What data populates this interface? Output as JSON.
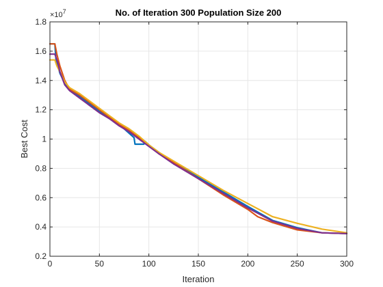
{
  "chart_data": {
    "type": "line",
    "title": "No. of Iteration 300 Population Size 200",
    "xlabel": "Iteration",
    "ylabel": "Best Cost",
    "y_exponent_label": "×10",
    "y_exponent_power": "7",
    "xlim": [
      0,
      300
    ],
    "ylim": [
      0.2,
      1.8
    ],
    "x_ticks": [
      0,
      50,
      100,
      150,
      200,
      250,
      300
    ],
    "x_tick_labels": [
      "0",
      "50",
      "100",
      "150",
      "200",
      "250",
      "300"
    ],
    "y_ticks": [
      0.2,
      0.4,
      0.6,
      0.8,
      1.0,
      1.2,
      1.4,
      1.6,
      1.8
    ],
    "y_tick_labels": [
      "0.2",
      "0.4",
      "0.6",
      "0.8",
      "1",
      "1.2",
      "1.4",
      "1.6",
      "1.8"
    ],
    "grid": true,
    "series": [
      {
        "color": "#0072BD",
        "x": [
          0,
          5,
          6,
          10,
          15,
          20,
          30,
          40,
          50,
          60,
          70,
          80,
          85,
          86,
          95,
          96,
          100,
          110,
          125,
          150,
          175,
          200,
          225,
          250,
          275,
          300
        ],
        "y": [
          1.65,
          1.65,
          1.55,
          1.45,
          1.38,
          1.34,
          1.29,
          1.24,
          1.19,
          1.14,
          1.1,
          1.04,
          1.01,
          0.965,
          0.965,
          0.985,
          0.96,
          0.91,
          0.84,
          0.74,
          0.64,
          0.54,
          0.445,
          0.395,
          0.36,
          0.355
        ]
      },
      {
        "color": "#D95319",
        "x": [
          0,
          5,
          7,
          10,
          15,
          20,
          30,
          40,
          50,
          60,
          70,
          80,
          90,
          100,
          110,
          125,
          150,
          175,
          200,
          210,
          225,
          250,
          275,
          300
        ],
        "y": [
          1.65,
          1.65,
          1.58,
          1.5,
          1.4,
          1.34,
          1.3,
          1.25,
          1.2,
          1.15,
          1.1,
          1.06,
          1.01,
          0.96,
          0.9,
          0.84,
          0.73,
          0.62,
          0.52,
          0.47,
          0.43,
          0.38,
          0.36,
          0.355
        ]
      },
      {
        "color": "#EDB120",
        "x": [
          0,
          5,
          7,
          10,
          15,
          20,
          30,
          40,
          50,
          60,
          70,
          80,
          90,
          100,
          110,
          125,
          150,
          175,
          200,
          225,
          250,
          275,
          300
        ],
        "y": [
          1.54,
          1.54,
          1.5,
          1.46,
          1.39,
          1.35,
          1.31,
          1.26,
          1.21,
          1.16,
          1.11,
          1.07,
          1.02,
          0.96,
          0.91,
          0.85,
          0.75,
          0.65,
          0.56,
          0.47,
          0.425,
          0.385,
          0.36
        ]
      },
      {
        "color": "#7E2F8E",
        "x": [
          0,
          5,
          8,
          10,
          15,
          20,
          30,
          40,
          50,
          60,
          70,
          80,
          90,
          100,
          110,
          125,
          150,
          175,
          200,
          225,
          250,
          275,
          300
        ],
        "y": [
          1.58,
          1.58,
          1.52,
          1.46,
          1.37,
          1.33,
          1.28,
          1.23,
          1.18,
          1.14,
          1.09,
          1.05,
          1.0,
          0.95,
          0.9,
          0.83,
          0.73,
          0.63,
          0.53,
          0.44,
          0.39,
          0.36,
          0.355
        ]
      }
    ]
  }
}
